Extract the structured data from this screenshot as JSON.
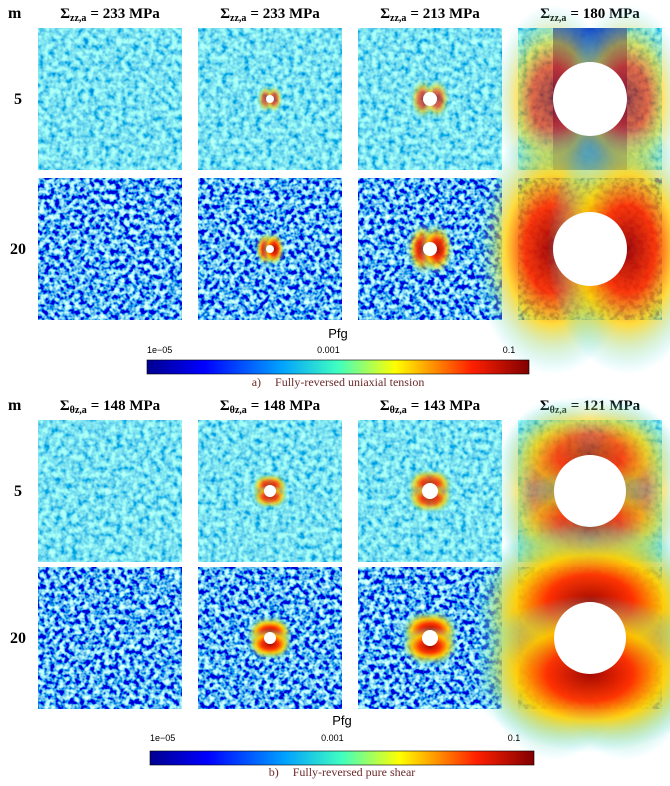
{
  "figure": {
    "sections": [
      {
        "label": "a)",
        "caption": "Fully-reversed uniaxial tension",
        "row_header": "m",
        "rows": [
          "5",
          "20"
        ],
        "columns": [
          {
            "symbol": "Σ",
            "subscript": "zz,a",
            "equals": "= 233 MPa"
          },
          {
            "symbol": "Σ",
            "subscript": "zz,a",
            "equals": "= 233 MPa"
          },
          {
            "symbol": "Σ",
            "subscript": "zz,a",
            "equals": "= 213 MPa"
          },
          {
            "symbol": "Σ",
            "subscript": "zz,a",
            "equals": "= 180 MPa"
          }
        ],
        "colorbar": {
          "title": "Pfg",
          "ticks": [
            "1e−05",
            "0.001",
            "0.1"
          ]
        }
      },
      {
        "label": "b)",
        "caption": "Fully-reversed pure shear",
        "row_header": "m",
        "rows": [
          "5",
          "20"
        ],
        "columns": [
          {
            "symbol": "Σ",
            "subscript": "θz,a",
            "equals": "= 148 MPa"
          },
          {
            "symbol": "Σ",
            "subscript": "θz,a",
            "equals": "= 148 MPa"
          },
          {
            "symbol": "Σ",
            "subscript": "θz,a",
            "equals": "= 143 MPa"
          },
          {
            "symbol": "Σ",
            "subscript": "θz,a",
            "equals": "= 121 MPa"
          }
        ],
        "colorbar": {
          "title": "Pfg",
          "ticks": [
            "1e−05",
            "0.001",
            "0.1"
          ]
        }
      }
    ]
  }
}
